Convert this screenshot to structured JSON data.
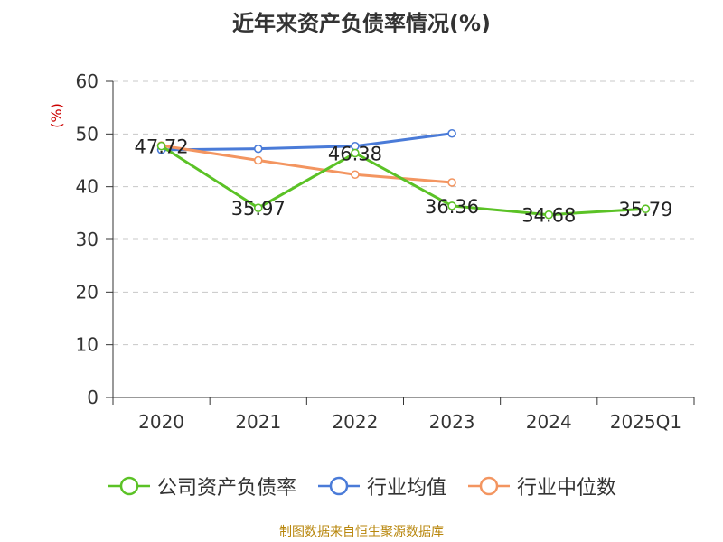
{
  "chart_data": {
    "type": "line",
    "title": "近年来资产负债率情况(%)",
    "ylabel": "(%)",
    "xlabel": "",
    "categories": [
      "2020",
      "2021",
      "2022",
      "2023",
      "2024",
      "2025Q1"
    ],
    "ylim": [
      0,
      60
    ],
    "yticks": [
      0,
      10,
      20,
      30,
      40,
      50,
      60
    ],
    "grid": true,
    "legend_position": "bottom",
    "series": [
      {
        "name": "公司资产负债率",
        "color": "#5bc226",
        "values": [
          47.72,
          35.97,
          46.38,
          36.36,
          34.68,
          35.79
        ],
        "labels": [
          "47.72",
          "35.97",
          "46.38",
          "36.36",
          "34.68",
          "35.79"
        ]
      },
      {
        "name": "行业均值",
        "color": "#4a7bd8",
        "values": [
          47.0,
          47.2,
          47.7,
          50.1,
          null,
          null
        ]
      },
      {
        "name": "行业中位数",
        "color": "#f39560",
        "values": [
          47.8,
          45.0,
          42.3,
          40.8,
          null,
          null
        ]
      }
    ]
  },
  "source": "制图数据来自恒生聚源数据库"
}
